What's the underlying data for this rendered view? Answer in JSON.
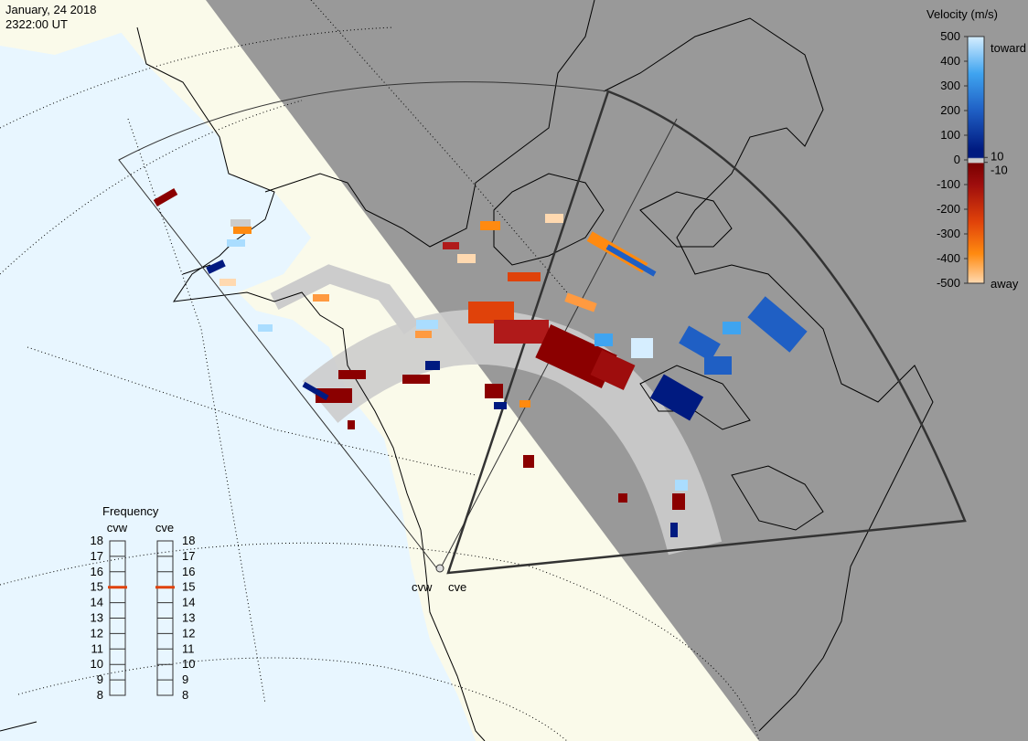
{
  "header": {
    "date": "January, 24 2018",
    "time": "2322:00 UT"
  },
  "colorbar": {
    "title": "Velocity (m/s)",
    "ticks": [
      500,
      400,
      300,
      200,
      100,
      0,
      -100,
      -200,
      -300,
      -400,
      -500
    ],
    "inner_ticks": [
      10,
      -10
    ],
    "toward": "toward",
    "away": "away"
  },
  "frequency": {
    "title": "Frequency",
    "radars": [
      {
        "name": "cvw",
        "value": 15
      },
      {
        "name": "cve",
        "value": 15
      }
    ],
    "ticks": [
      18,
      17,
      16,
      15,
      14,
      13,
      12,
      11,
      10,
      9,
      8
    ]
  },
  "map": {
    "radar_labels": [
      "cvw",
      "cve"
    ]
  }
}
